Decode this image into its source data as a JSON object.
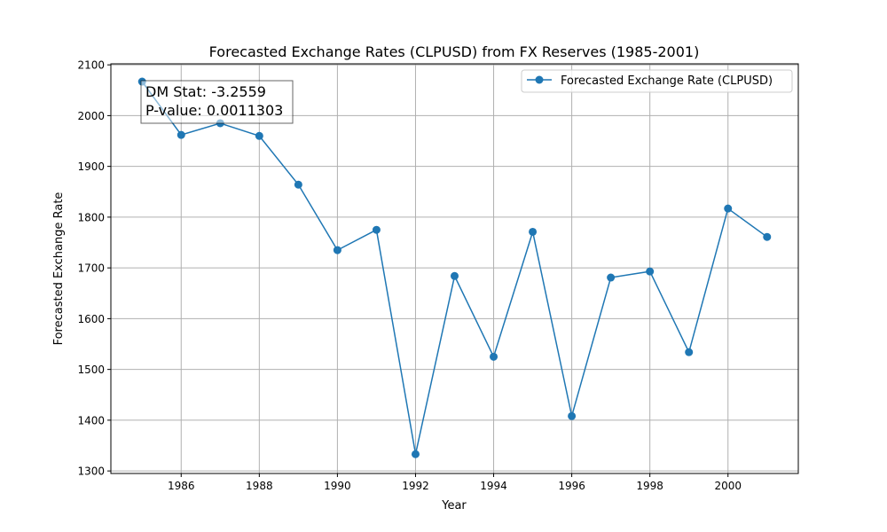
{
  "chart_data": {
    "type": "line",
    "title": "Forecasted Exchange Rates (CLPUSD) from FX Reserves (1985-2001)",
    "xlabel": "Year",
    "ylabel": "Forecasted Exchange Rate",
    "xlim": [
      1984.2,
      2001.8
    ],
    "ylim": [
      1295,
      2102
    ],
    "x_ticks": [
      1986,
      1988,
      1990,
      1992,
      1994,
      1996,
      1998,
      2000
    ],
    "y_ticks": [
      1300,
      1400,
      1500,
      1600,
      1700,
      1800,
      1900,
      2000,
      2100
    ],
    "grid": true,
    "legend_position": "top-right",
    "series": [
      {
        "name": "Forecasted Exchange Rate (CLPUSD)",
        "color": "#1f77b4",
        "marker": "circle",
        "x": [
          1985,
          1986,
          1987,
          1988,
          1989,
          1990,
          1991,
          1992,
          1993,
          1994,
          1995,
          1996,
          1997,
          1998,
          1999,
          2000,
          2001
        ],
        "y": [
          2067,
          1962,
          1985,
          1960,
          1864,
          1735,
          1775,
          1333,
          1684,
          1525,
          1771,
          1408,
          1681,
          1693,
          1534,
          1817,
          1761
        ]
      }
    ],
    "annotation": {
      "lines": [
        "DM Stat: -3.2559",
        "P-value: 0.0011303"
      ],
      "position": "top-left"
    }
  }
}
